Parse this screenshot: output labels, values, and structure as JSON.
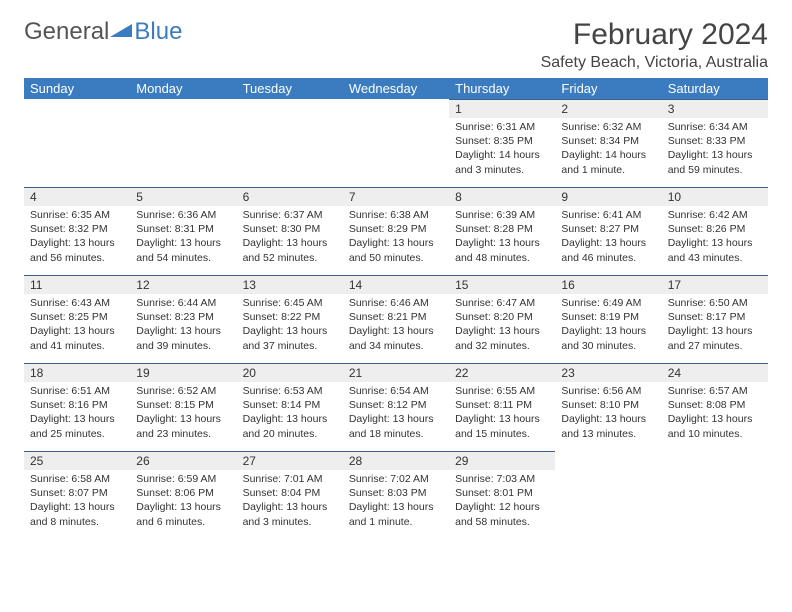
{
  "logo": {
    "word1": "General",
    "word2": "Blue"
  },
  "title": "February 2024",
  "location": "Safety Beach, Victoria, Australia",
  "colors": {
    "header_bg": "#3b7bbf",
    "header_text": "#ffffff",
    "daynum_bg": "#eeeeee",
    "daynum_border": "#3b5f87",
    "text": "#333333",
    "logo_gray": "#555555",
    "logo_blue": "#3b7bbf"
  },
  "day_headers": [
    "Sunday",
    "Monday",
    "Tuesday",
    "Wednesday",
    "Thursday",
    "Friday",
    "Saturday"
  ],
  "weeks": [
    [
      null,
      null,
      null,
      null,
      {
        "n": "1",
        "sr": "Sunrise: 6:31 AM",
        "ss": "Sunset: 8:35 PM",
        "dl1": "Daylight: 14 hours",
        "dl2": "and 3 minutes."
      },
      {
        "n": "2",
        "sr": "Sunrise: 6:32 AM",
        "ss": "Sunset: 8:34 PM",
        "dl1": "Daylight: 14 hours",
        "dl2": "and 1 minute."
      },
      {
        "n": "3",
        "sr": "Sunrise: 6:34 AM",
        "ss": "Sunset: 8:33 PM",
        "dl1": "Daylight: 13 hours",
        "dl2": "and 59 minutes."
      }
    ],
    [
      {
        "n": "4",
        "sr": "Sunrise: 6:35 AM",
        "ss": "Sunset: 8:32 PM",
        "dl1": "Daylight: 13 hours",
        "dl2": "and 56 minutes."
      },
      {
        "n": "5",
        "sr": "Sunrise: 6:36 AM",
        "ss": "Sunset: 8:31 PM",
        "dl1": "Daylight: 13 hours",
        "dl2": "and 54 minutes."
      },
      {
        "n": "6",
        "sr": "Sunrise: 6:37 AM",
        "ss": "Sunset: 8:30 PM",
        "dl1": "Daylight: 13 hours",
        "dl2": "and 52 minutes."
      },
      {
        "n": "7",
        "sr": "Sunrise: 6:38 AM",
        "ss": "Sunset: 8:29 PM",
        "dl1": "Daylight: 13 hours",
        "dl2": "and 50 minutes."
      },
      {
        "n": "8",
        "sr": "Sunrise: 6:39 AM",
        "ss": "Sunset: 8:28 PM",
        "dl1": "Daylight: 13 hours",
        "dl2": "and 48 minutes."
      },
      {
        "n": "9",
        "sr": "Sunrise: 6:41 AM",
        "ss": "Sunset: 8:27 PM",
        "dl1": "Daylight: 13 hours",
        "dl2": "and 46 minutes."
      },
      {
        "n": "10",
        "sr": "Sunrise: 6:42 AM",
        "ss": "Sunset: 8:26 PM",
        "dl1": "Daylight: 13 hours",
        "dl2": "and 43 minutes."
      }
    ],
    [
      {
        "n": "11",
        "sr": "Sunrise: 6:43 AM",
        "ss": "Sunset: 8:25 PM",
        "dl1": "Daylight: 13 hours",
        "dl2": "and 41 minutes."
      },
      {
        "n": "12",
        "sr": "Sunrise: 6:44 AM",
        "ss": "Sunset: 8:23 PM",
        "dl1": "Daylight: 13 hours",
        "dl2": "and 39 minutes."
      },
      {
        "n": "13",
        "sr": "Sunrise: 6:45 AM",
        "ss": "Sunset: 8:22 PM",
        "dl1": "Daylight: 13 hours",
        "dl2": "and 37 minutes."
      },
      {
        "n": "14",
        "sr": "Sunrise: 6:46 AM",
        "ss": "Sunset: 8:21 PM",
        "dl1": "Daylight: 13 hours",
        "dl2": "and 34 minutes."
      },
      {
        "n": "15",
        "sr": "Sunrise: 6:47 AM",
        "ss": "Sunset: 8:20 PM",
        "dl1": "Daylight: 13 hours",
        "dl2": "and 32 minutes."
      },
      {
        "n": "16",
        "sr": "Sunrise: 6:49 AM",
        "ss": "Sunset: 8:19 PM",
        "dl1": "Daylight: 13 hours",
        "dl2": "and 30 minutes."
      },
      {
        "n": "17",
        "sr": "Sunrise: 6:50 AM",
        "ss": "Sunset: 8:17 PM",
        "dl1": "Daylight: 13 hours",
        "dl2": "and 27 minutes."
      }
    ],
    [
      {
        "n": "18",
        "sr": "Sunrise: 6:51 AM",
        "ss": "Sunset: 8:16 PM",
        "dl1": "Daylight: 13 hours",
        "dl2": "and 25 minutes."
      },
      {
        "n": "19",
        "sr": "Sunrise: 6:52 AM",
        "ss": "Sunset: 8:15 PM",
        "dl1": "Daylight: 13 hours",
        "dl2": "and 23 minutes."
      },
      {
        "n": "20",
        "sr": "Sunrise: 6:53 AM",
        "ss": "Sunset: 8:14 PM",
        "dl1": "Daylight: 13 hours",
        "dl2": "and 20 minutes."
      },
      {
        "n": "21",
        "sr": "Sunrise: 6:54 AM",
        "ss": "Sunset: 8:12 PM",
        "dl1": "Daylight: 13 hours",
        "dl2": "and 18 minutes."
      },
      {
        "n": "22",
        "sr": "Sunrise: 6:55 AM",
        "ss": "Sunset: 8:11 PM",
        "dl1": "Daylight: 13 hours",
        "dl2": "and 15 minutes."
      },
      {
        "n": "23",
        "sr": "Sunrise: 6:56 AM",
        "ss": "Sunset: 8:10 PM",
        "dl1": "Daylight: 13 hours",
        "dl2": "and 13 minutes."
      },
      {
        "n": "24",
        "sr": "Sunrise: 6:57 AM",
        "ss": "Sunset: 8:08 PM",
        "dl1": "Daylight: 13 hours",
        "dl2": "and 10 minutes."
      }
    ],
    [
      {
        "n": "25",
        "sr": "Sunrise: 6:58 AM",
        "ss": "Sunset: 8:07 PM",
        "dl1": "Daylight: 13 hours",
        "dl2": "and 8 minutes."
      },
      {
        "n": "26",
        "sr": "Sunrise: 6:59 AM",
        "ss": "Sunset: 8:06 PM",
        "dl1": "Daylight: 13 hours",
        "dl2": "and 6 minutes."
      },
      {
        "n": "27",
        "sr": "Sunrise: 7:01 AM",
        "ss": "Sunset: 8:04 PM",
        "dl1": "Daylight: 13 hours",
        "dl2": "and 3 minutes."
      },
      {
        "n": "28",
        "sr": "Sunrise: 7:02 AM",
        "ss": "Sunset: 8:03 PM",
        "dl1": "Daylight: 13 hours",
        "dl2": "and 1 minute."
      },
      {
        "n": "29",
        "sr": "Sunrise: 7:03 AM",
        "ss": "Sunset: 8:01 PM",
        "dl1": "Daylight: 12 hours",
        "dl2": "and 58 minutes."
      },
      null,
      null
    ]
  ]
}
